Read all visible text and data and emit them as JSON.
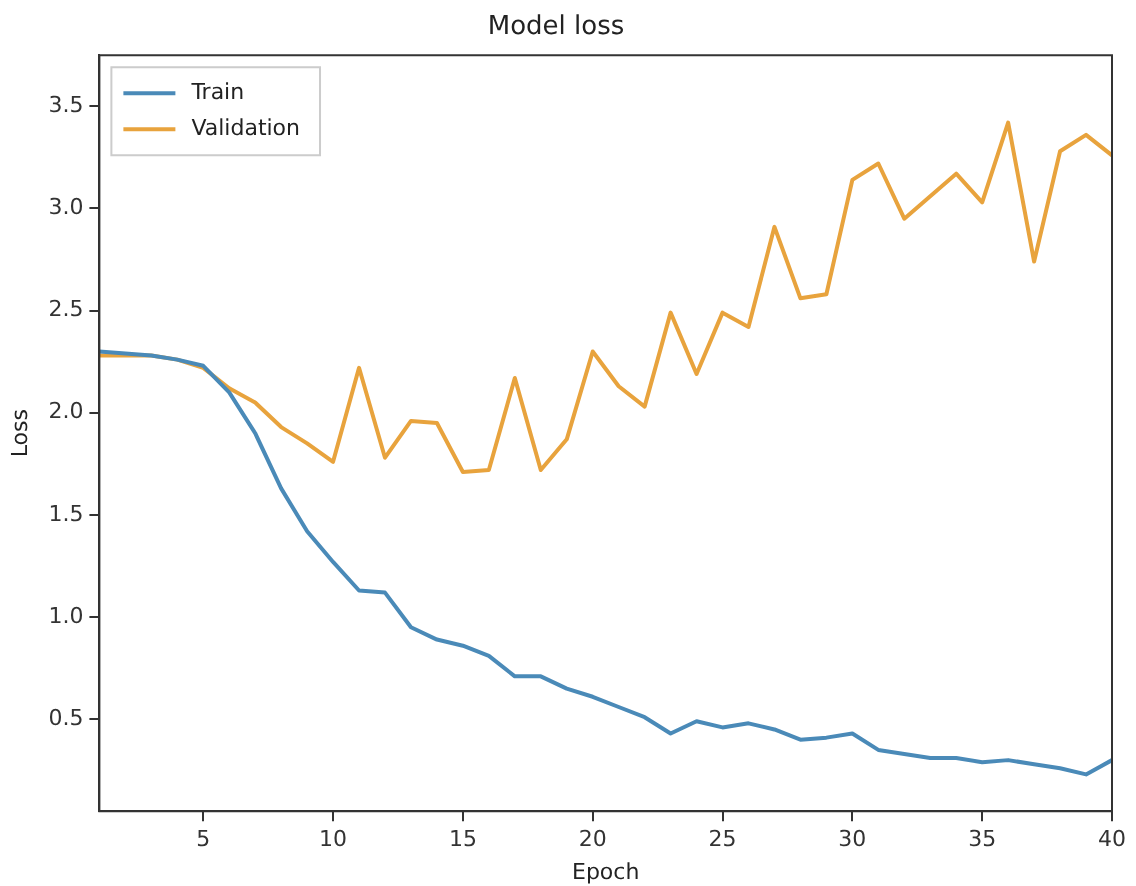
{
  "chart_data": {
    "type": "line",
    "title": "Model loss",
    "xlabel": "Epoch",
    "ylabel": "Loss",
    "x": [
      1,
      2,
      3,
      4,
      5,
      6,
      7,
      8,
      9,
      10,
      11,
      12,
      13,
      14,
      15,
      16,
      17,
      18,
      19,
      20,
      21,
      22,
      23,
      24,
      25,
      26,
      27,
      28,
      29,
      30,
      31,
      32,
      33,
      34,
      35,
      36,
      37,
      38,
      39,
      40
    ],
    "series": [
      {
        "name": "Train",
        "color": "#4a8ab8",
        "values": [
          2.3,
          2.29,
          2.28,
          2.26,
          2.23,
          2.1,
          1.9,
          1.63,
          1.42,
          1.27,
          1.13,
          1.12,
          0.95,
          0.89,
          0.86,
          0.81,
          0.71,
          0.71,
          0.65,
          0.61,
          0.56,
          0.51,
          0.43,
          0.49,
          0.46,
          0.48,
          0.45,
          0.4,
          0.41,
          0.43,
          0.35,
          0.33,
          0.31,
          0.31,
          0.29,
          0.3,
          0.28,
          0.26,
          0.23,
          0.3
        ]
      },
      {
        "name": "Validation",
        "color": "#e8a33d",
        "values": [
          2.28,
          2.28,
          2.28,
          2.26,
          2.22,
          2.12,
          2.05,
          1.93,
          1.85,
          1.76,
          2.22,
          1.78,
          1.96,
          1.95,
          1.71,
          1.72,
          2.17,
          1.72,
          1.87,
          2.3,
          2.13,
          2.03,
          2.49,
          2.19,
          2.49,
          2.42,
          2.91,
          2.56,
          2.58,
          3.14,
          3.22,
          2.95,
          3.06,
          3.17,
          3.03,
          3.42,
          2.74,
          3.28,
          3.36,
          3.26
        ]
      }
    ],
    "xlim": [
      1,
      40
    ],
    "xticks": [
      5,
      10,
      15,
      20,
      25,
      30,
      35,
      40
    ],
    "ylim": [
      0.05,
      3.75
    ],
    "yticks": [
      0.5,
      {
        "value": 1,
        "label": "1.0"
      },
      1.5,
      {
        "value": 2,
        "label": "2.0"
      },
      2.5,
      {
        "value": 3,
        "label": "3.0"
      },
      3.5
    ],
    "legend": "top left",
    "grid": false,
    "marker": "none",
    "line_style": "solid"
  }
}
